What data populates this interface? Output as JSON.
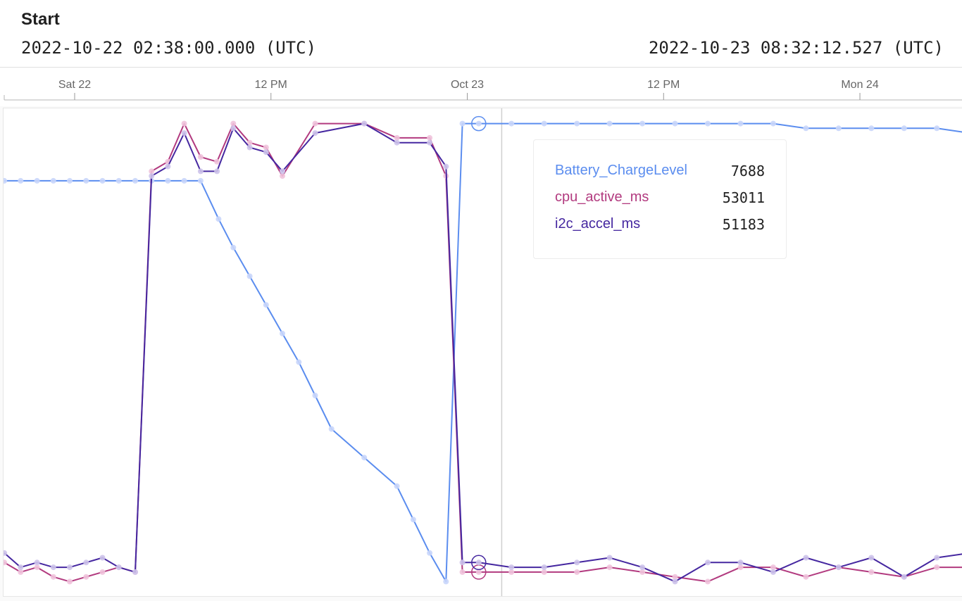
{
  "header": {
    "label": "Start",
    "start_time": "2022-10-22 02:38:00.000 (UTC)",
    "end_time": "2022-10-23 08:32:12.527 (UTC)"
  },
  "chart_data": {
    "type": "line",
    "x_axis": {
      "ticks": [
        {
          "label": "Sat 22",
          "hours": 0
        },
        {
          "label": "12 PM",
          "hours": 12
        },
        {
          "label": "Oct 23",
          "hours": 24
        },
        {
          "label": "12 PM",
          "hours": 36
        },
        {
          "label": "Mon 24",
          "hours": 48
        }
      ]
    },
    "y_range": [
      0,
      1
    ],
    "series": [
      {
        "name": "Battery_ChargeLevel",
        "color": "#5b8def",
        "points": [
          [
            -4.3,
            0.86
          ],
          [
            -3.3,
            0.86
          ],
          [
            -2.3,
            0.86
          ],
          [
            -1.3,
            0.86
          ],
          [
            -0.3,
            0.86
          ],
          [
            0.7,
            0.86
          ],
          [
            1.7,
            0.86
          ],
          [
            2.7,
            0.86
          ],
          [
            3.7,
            0.86
          ],
          [
            4.7,
            0.86
          ],
          [
            5.7,
            0.86
          ],
          [
            6.7,
            0.86
          ],
          [
            7.7,
            0.86
          ],
          [
            8.8,
            0.78
          ],
          [
            9.7,
            0.72
          ],
          [
            10.7,
            0.66
          ],
          [
            11.7,
            0.6
          ],
          [
            12.7,
            0.54
          ],
          [
            13.7,
            0.48
          ],
          [
            14.7,
            0.41
          ],
          [
            15.7,
            0.34
          ],
          [
            17.7,
            0.28
          ],
          [
            19.7,
            0.22
          ],
          [
            20.7,
            0.15
          ],
          [
            21.7,
            0.08
          ],
          [
            22.7,
            0.02
          ],
          [
            23.7,
            0.98
          ],
          [
            24.7,
            0.98
          ],
          [
            26.7,
            0.98
          ],
          [
            28.7,
            0.98
          ],
          [
            30.7,
            0.98
          ],
          [
            32.7,
            0.98
          ],
          [
            34.7,
            0.98
          ],
          [
            36.7,
            0.98
          ],
          [
            38.7,
            0.98
          ],
          [
            40.7,
            0.98
          ],
          [
            42.7,
            0.98
          ],
          [
            44.7,
            0.97
          ],
          [
            46.7,
            0.97
          ],
          [
            48.7,
            0.97
          ],
          [
            50.7,
            0.97
          ],
          [
            52.7,
            0.97
          ],
          [
            54.7,
            0.96
          ],
          [
            55.7,
            0.96
          ]
        ]
      },
      {
        "name": "cpu_active_ms",
        "color": "#b23a7f",
        "points": [
          [
            -4.3,
            0.06
          ],
          [
            -3.3,
            0.04
          ],
          [
            -2.3,
            0.05
          ],
          [
            -1.3,
            0.03
          ],
          [
            -0.3,
            0.02
          ],
          [
            0.7,
            0.03
          ],
          [
            1.7,
            0.04
          ],
          [
            2.7,
            0.05
          ],
          [
            3.7,
            0.04
          ],
          [
            4.7,
            0.88
          ],
          [
            5.7,
            0.9
          ],
          [
            6.7,
            0.98
          ],
          [
            7.7,
            0.91
          ],
          [
            8.7,
            0.9
          ],
          [
            9.7,
            0.98
          ],
          [
            10.7,
            0.94
          ],
          [
            11.7,
            0.93
          ],
          [
            12.7,
            0.87
          ],
          [
            14.7,
            0.98
          ],
          [
            17.7,
            0.98
          ],
          [
            19.7,
            0.95
          ],
          [
            21.7,
            0.95
          ],
          [
            22.7,
            0.87
          ],
          [
            23.7,
            0.04
          ],
          [
            24.7,
            0.04
          ],
          [
            26.7,
            0.04
          ],
          [
            28.7,
            0.04
          ],
          [
            30.7,
            0.04
          ],
          [
            32.7,
            0.05
          ],
          [
            34.7,
            0.04
          ],
          [
            36.7,
            0.03
          ],
          [
            38.7,
            0.02
          ],
          [
            40.7,
            0.05
          ],
          [
            42.7,
            0.05
          ],
          [
            44.7,
            0.03
          ],
          [
            46.7,
            0.05
          ],
          [
            48.7,
            0.04
          ],
          [
            50.7,
            0.03
          ],
          [
            52.7,
            0.05
          ],
          [
            54.7,
            0.05
          ],
          [
            55.7,
            0.04
          ]
        ]
      },
      {
        "name": "i2c_accel_ms",
        "color": "#4527a0",
        "points": [
          [
            -4.3,
            0.08
          ],
          [
            -3.3,
            0.05
          ],
          [
            -2.3,
            0.06
          ],
          [
            -1.3,
            0.05
          ],
          [
            -0.3,
            0.05
          ],
          [
            0.7,
            0.06
          ],
          [
            1.7,
            0.07
          ],
          [
            2.7,
            0.05
          ],
          [
            3.7,
            0.04
          ],
          [
            4.7,
            0.87
          ],
          [
            5.7,
            0.89
          ],
          [
            6.7,
            0.96
          ],
          [
            7.7,
            0.88
          ],
          [
            8.7,
            0.88
          ],
          [
            9.7,
            0.97
          ],
          [
            10.7,
            0.93
          ],
          [
            11.7,
            0.92
          ],
          [
            12.7,
            0.88
          ],
          [
            14.7,
            0.96
          ],
          [
            17.7,
            0.98
          ],
          [
            19.7,
            0.94
          ],
          [
            21.7,
            0.94
          ],
          [
            22.7,
            0.89
          ],
          [
            23.7,
            0.06
          ],
          [
            24.7,
            0.06
          ],
          [
            26.7,
            0.05
          ],
          [
            28.7,
            0.05
          ],
          [
            30.7,
            0.06
          ],
          [
            32.7,
            0.07
          ],
          [
            34.7,
            0.05
          ],
          [
            36.7,
            0.02
          ],
          [
            38.7,
            0.06
          ],
          [
            40.7,
            0.06
          ],
          [
            42.7,
            0.04
          ],
          [
            44.7,
            0.07
          ],
          [
            46.7,
            0.05
          ],
          [
            48.7,
            0.07
          ],
          [
            50.7,
            0.03
          ],
          [
            52.7,
            0.07
          ],
          [
            54.7,
            0.08
          ],
          [
            55.7,
            0.06
          ]
        ]
      }
    ],
    "crosshair_hours": 25.2,
    "tooltip": {
      "rows": [
        {
          "name": "Battery_ChargeLevel",
          "value": "7688",
          "color": "#5b8def"
        },
        {
          "name": "cpu_active_ms",
          "value": "53011",
          "color": "#b23a7f"
        },
        {
          "name": "i2c_accel_ms",
          "value": "51183",
          "color": "#4527a0"
        }
      ]
    }
  }
}
